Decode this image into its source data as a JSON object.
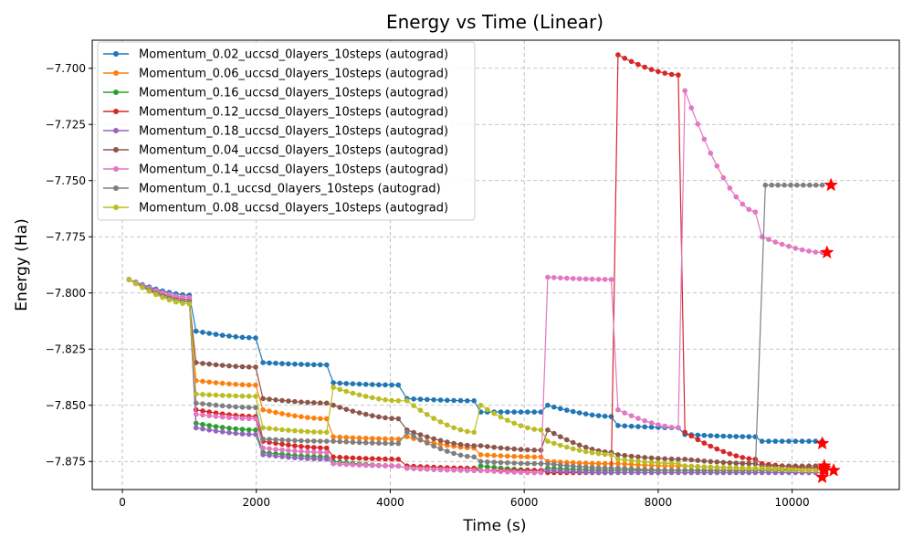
{
  "chart_data": {
    "type": "line",
    "title": "Energy vs Time (Linear)",
    "xlabel": "Time (s)",
    "ylabel": "Energy (Ha)",
    "xlim": [
      -450,
      11600
    ],
    "ylim": [
      -7.8875,
      -7.6875
    ],
    "xticks": [
      0,
      2000,
      4000,
      6000,
      8000,
      10000
    ],
    "xtick_labels": [
      "0",
      "2000",
      "4000",
      "6000",
      "8000",
      "10000"
    ],
    "yticks": [
      -7.875,
      -7.85,
      -7.825,
      -7.8,
      -7.775,
      -7.75,
      -7.725,
      -7.7
    ],
    "ytick_labels": [
      "−7.875",
      "−7.850",
      "−7.825",
      "−7.800",
      "−7.775",
      "−7.750",
      "−7.725",
      "−7.700"
    ],
    "grid": true,
    "legend_position": "top-left",
    "final_marker": "red-star",
    "series": [
      {
        "name": "Momentum_0.02_uccsd_0layers_10steps (autograd)",
        "color": "#1f77b4",
        "segments": [
          [
            100,
            1000,
            -7.794,
            -7.801
          ],
          [
            1100,
            1990,
            -7.817,
            -7.82
          ],
          [
            2100,
            3050,
            -7.831,
            -7.832
          ],
          [
            3150,
            4120,
            -7.84,
            -7.841
          ],
          [
            4250,
            5250,
            -7.847,
            -7.848
          ],
          [
            5350,
            6250,
            -7.853,
            -7.853
          ],
          [
            6350,
            7300,
            -7.85,
            -7.855
          ],
          [
            7400,
            8300,
            -7.859,
            -7.86
          ],
          [
            8400,
            9450,
            -7.863,
            -7.864
          ],
          [
            9550,
            10450,
            -7.866,
            -7.866
          ]
        ],
        "final": [
          10450,
          -7.867
        ]
      },
      {
        "name": "Momentum_0.06_uccsd_0layers_10steps (autograd)",
        "color": "#ff7f0e",
        "segments": [
          [
            100,
            1000,
            -7.794,
            -7.804
          ],
          [
            1100,
            1990,
            -7.839,
            -7.841
          ],
          [
            2100,
            3050,
            -7.852,
            -7.856
          ],
          [
            3150,
            4120,
            -7.864,
            -7.865
          ],
          [
            4250,
            5250,
            -7.864,
            -7.869
          ],
          [
            5350,
            6250,
            -7.872,
            -7.873
          ],
          [
            6350,
            7300,
            -7.875,
            -7.876
          ],
          [
            7400,
            8300,
            -7.876,
            -7.877
          ],
          [
            8400,
            9450,
            -7.877,
            -7.878
          ],
          [
            9550,
            10450,
            -7.878,
            -7.878
          ]
        ],
        "final": [
          10480,
          -7.878
        ]
      },
      {
        "name": "Momentum_0.16_uccsd_0layers_10steps (autograd)",
        "color": "#2ca02c",
        "segments": [
          [
            100,
            1000,
            -7.794,
            -7.804
          ],
          [
            1100,
            1990,
            -7.858,
            -7.861
          ],
          [
            2100,
            3050,
            -7.871,
            -7.873
          ],
          [
            3150,
            4120,
            -7.875,
            -7.877
          ],
          [
            4250,
            5250,
            -7.878,
            -7.879
          ],
          [
            5350,
            6250,
            -7.877,
            -7.879
          ],
          [
            6350,
            7300,
            -7.878,
            -7.879
          ],
          [
            7400,
            8300,
            -7.879,
            -7.879
          ],
          [
            8400,
            9450,
            -7.879,
            -7.879
          ],
          [
            9550,
            10450,
            -7.879,
            -7.879
          ]
        ],
        "final": [
          10480,
          -7.879
        ]
      },
      {
        "name": "Momentum_0.12_uccsd_0layers_10steps (autograd)",
        "color": "#d62728",
        "segments": [
          [
            100,
            1000,
            -7.794,
            -7.803
          ],
          [
            1100,
            1990,
            -7.852,
            -7.855
          ],
          [
            2100,
            3050,
            -7.866,
            -7.869
          ],
          [
            3150,
            4120,
            -7.873,
            -7.874
          ],
          [
            4250,
            5250,
            -7.877,
            -7.878
          ],
          [
            5350,
            6250,
            -7.879,
            -7.879
          ],
          [
            6350,
            7300,
            -7.88,
            -7.88
          ],
          [
            7400,
            8300,
            -7.694,
            -7.703
          ],
          [
            8400,
            9450,
            -7.862,
            -7.874
          ],
          [
            9550,
            10450,
            -7.876,
            -7.878
          ]
        ],
        "final": [
          10480,
          -7.878
        ]
      },
      {
        "name": "Momentum_0.18_uccsd_0layers_10steps (autograd)",
        "color": "#9467bd",
        "segments": [
          [
            100,
            1000,
            -7.794,
            -7.802
          ],
          [
            1100,
            1990,
            -7.86,
            -7.863
          ],
          [
            2100,
            3050,
            -7.872,
            -7.874
          ],
          [
            3150,
            4120,
            -7.876,
            -7.877
          ],
          [
            4250,
            5250,
            -7.878,
            -7.879
          ],
          [
            5350,
            6250,
            -7.879,
            -7.88
          ],
          [
            6350,
            7300,
            -7.879,
            -7.88
          ],
          [
            7400,
            8300,
            -7.88,
            -7.88
          ],
          [
            8400,
            9450,
            -7.88,
            -7.88
          ],
          [
            9550,
            10450,
            -7.88,
            -7.88
          ]
        ],
        "final": [
          10450,
          -7.882
        ]
      },
      {
        "name": "Momentum_0.04_uccsd_0layers_10steps (autograd)",
        "color": "#8c564b",
        "segments": [
          [
            100,
            1000,
            -7.794,
            -7.804
          ],
          [
            1100,
            1990,
            -7.831,
            -7.833
          ],
          [
            2100,
            3050,
            -7.847,
            -7.849
          ],
          [
            3150,
            4120,
            -7.85,
            -7.856
          ],
          [
            4250,
            5250,
            -7.861,
            -7.868
          ],
          [
            5350,
            6250,
            -7.868,
            -7.87
          ],
          [
            6350,
            7300,
            -7.861,
            -7.871
          ],
          [
            7400,
            8300,
            -7.872,
            -7.874
          ],
          [
            8400,
            9450,
            -7.874,
            -7.876
          ],
          [
            9550,
            10450,
            -7.877,
            -7.877
          ]
        ],
        "final": [
          10480,
          -7.877
        ]
      },
      {
        "name": "Momentum_0.14_uccsd_0layers_10steps (autograd)",
        "color": "#e377c2",
        "segments": [
          [
            100,
            1000,
            -7.794,
            -7.802
          ],
          [
            1100,
            1990,
            -7.854,
            -7.856
          ],
          [
            2100,
            3050,
            -7.869,
            -7.871
          ],
          [
            3150,
            4120,
            -7.876,
            -7.877
          ],
          [
            4250,
            5250,
            -7.878,
            -7.879
          ],
          [
            5350,
            6250,
            -7.879,
            -7.88
          ],
          [
            6350,
            7300,
            -7.793,
            -7.794
          ],
          [
            7400,
            8300,
            -7.852,
            -7.86
          ],
          [
            8400,
            9450,
            -7.71,
            -7.764
          ],
          [
            9550,
            10450,
            -7.775,
            -7.782
          ]
        ],
        "final": [
          10520,
          -7.782
        ]
      },
      {
        "name": "Momentum_0.1_uccsd_0layers_10steps (autograd)",
        "color": "#7f7f7f",
        "segments": [
          [
            100,
            1000,
            -7.794,
            -7.804
          ],
          [
            1100,
            1990,
            -7.849,
            -7.851
          ],
          [
            2100,
            3050,
            -7.865,
            -7.866
          ],
          [
            3150,
            4120,
            -7.866,
            -7.867
          ],
          [
            4250,
            5250,
            -7.862,
            -7.873
          ],
          [
            5350,
            6250,
            -7.875,
            -7.876
          ],
          [
            6350,
            7300,
            -7.876,
            -7.878
          ],
          [
            7400,
            8300,
            -7.878,
            -7.879
          ],
          [
            8400,
            9450,
            -7.879,
            -7.879
          ],
          [
            9600,
            10450,
            -7.752,
            -7.752
          ]
        ],
        "final": [
          10580,
          -7.752
        ]
      },
      {
        "name": "Momentum_0.08_uccsd_0layers_10steps (autograd)",
        "color": "#bcbd22",
        "segments": [
          [
            100,
            1000,
            -7.794,
            -7.805
          ],
          [
            1100,
            1990,
            -7.845,
            -7.846
          ],
          [
            2100,
            3050,
            -7.86,
            -7.862
          ],
          [
            3150,
            4120,
            -7.842,
            -7.848
          ],
          [
            4250,
            5250,
            -7.848,
            -7.862
          ],
          [
            5350,
            6250,
            -7.85,
            -7.861
          ],
          [
            6350,
            7300,
            -7.866,
            -7.872
          ],
          [
            7400,
            8300,
            -7.874,
            -7.876
          ],
          [
            8400,
            9450,
            -7.877,
            -7.878
          ],
          [
            9550,
            10450,
            -7.878,
            -7.879
          ]
        ],
        "final": [
          10620,
          -7.879
        ]
      }
    ]
  }
}
